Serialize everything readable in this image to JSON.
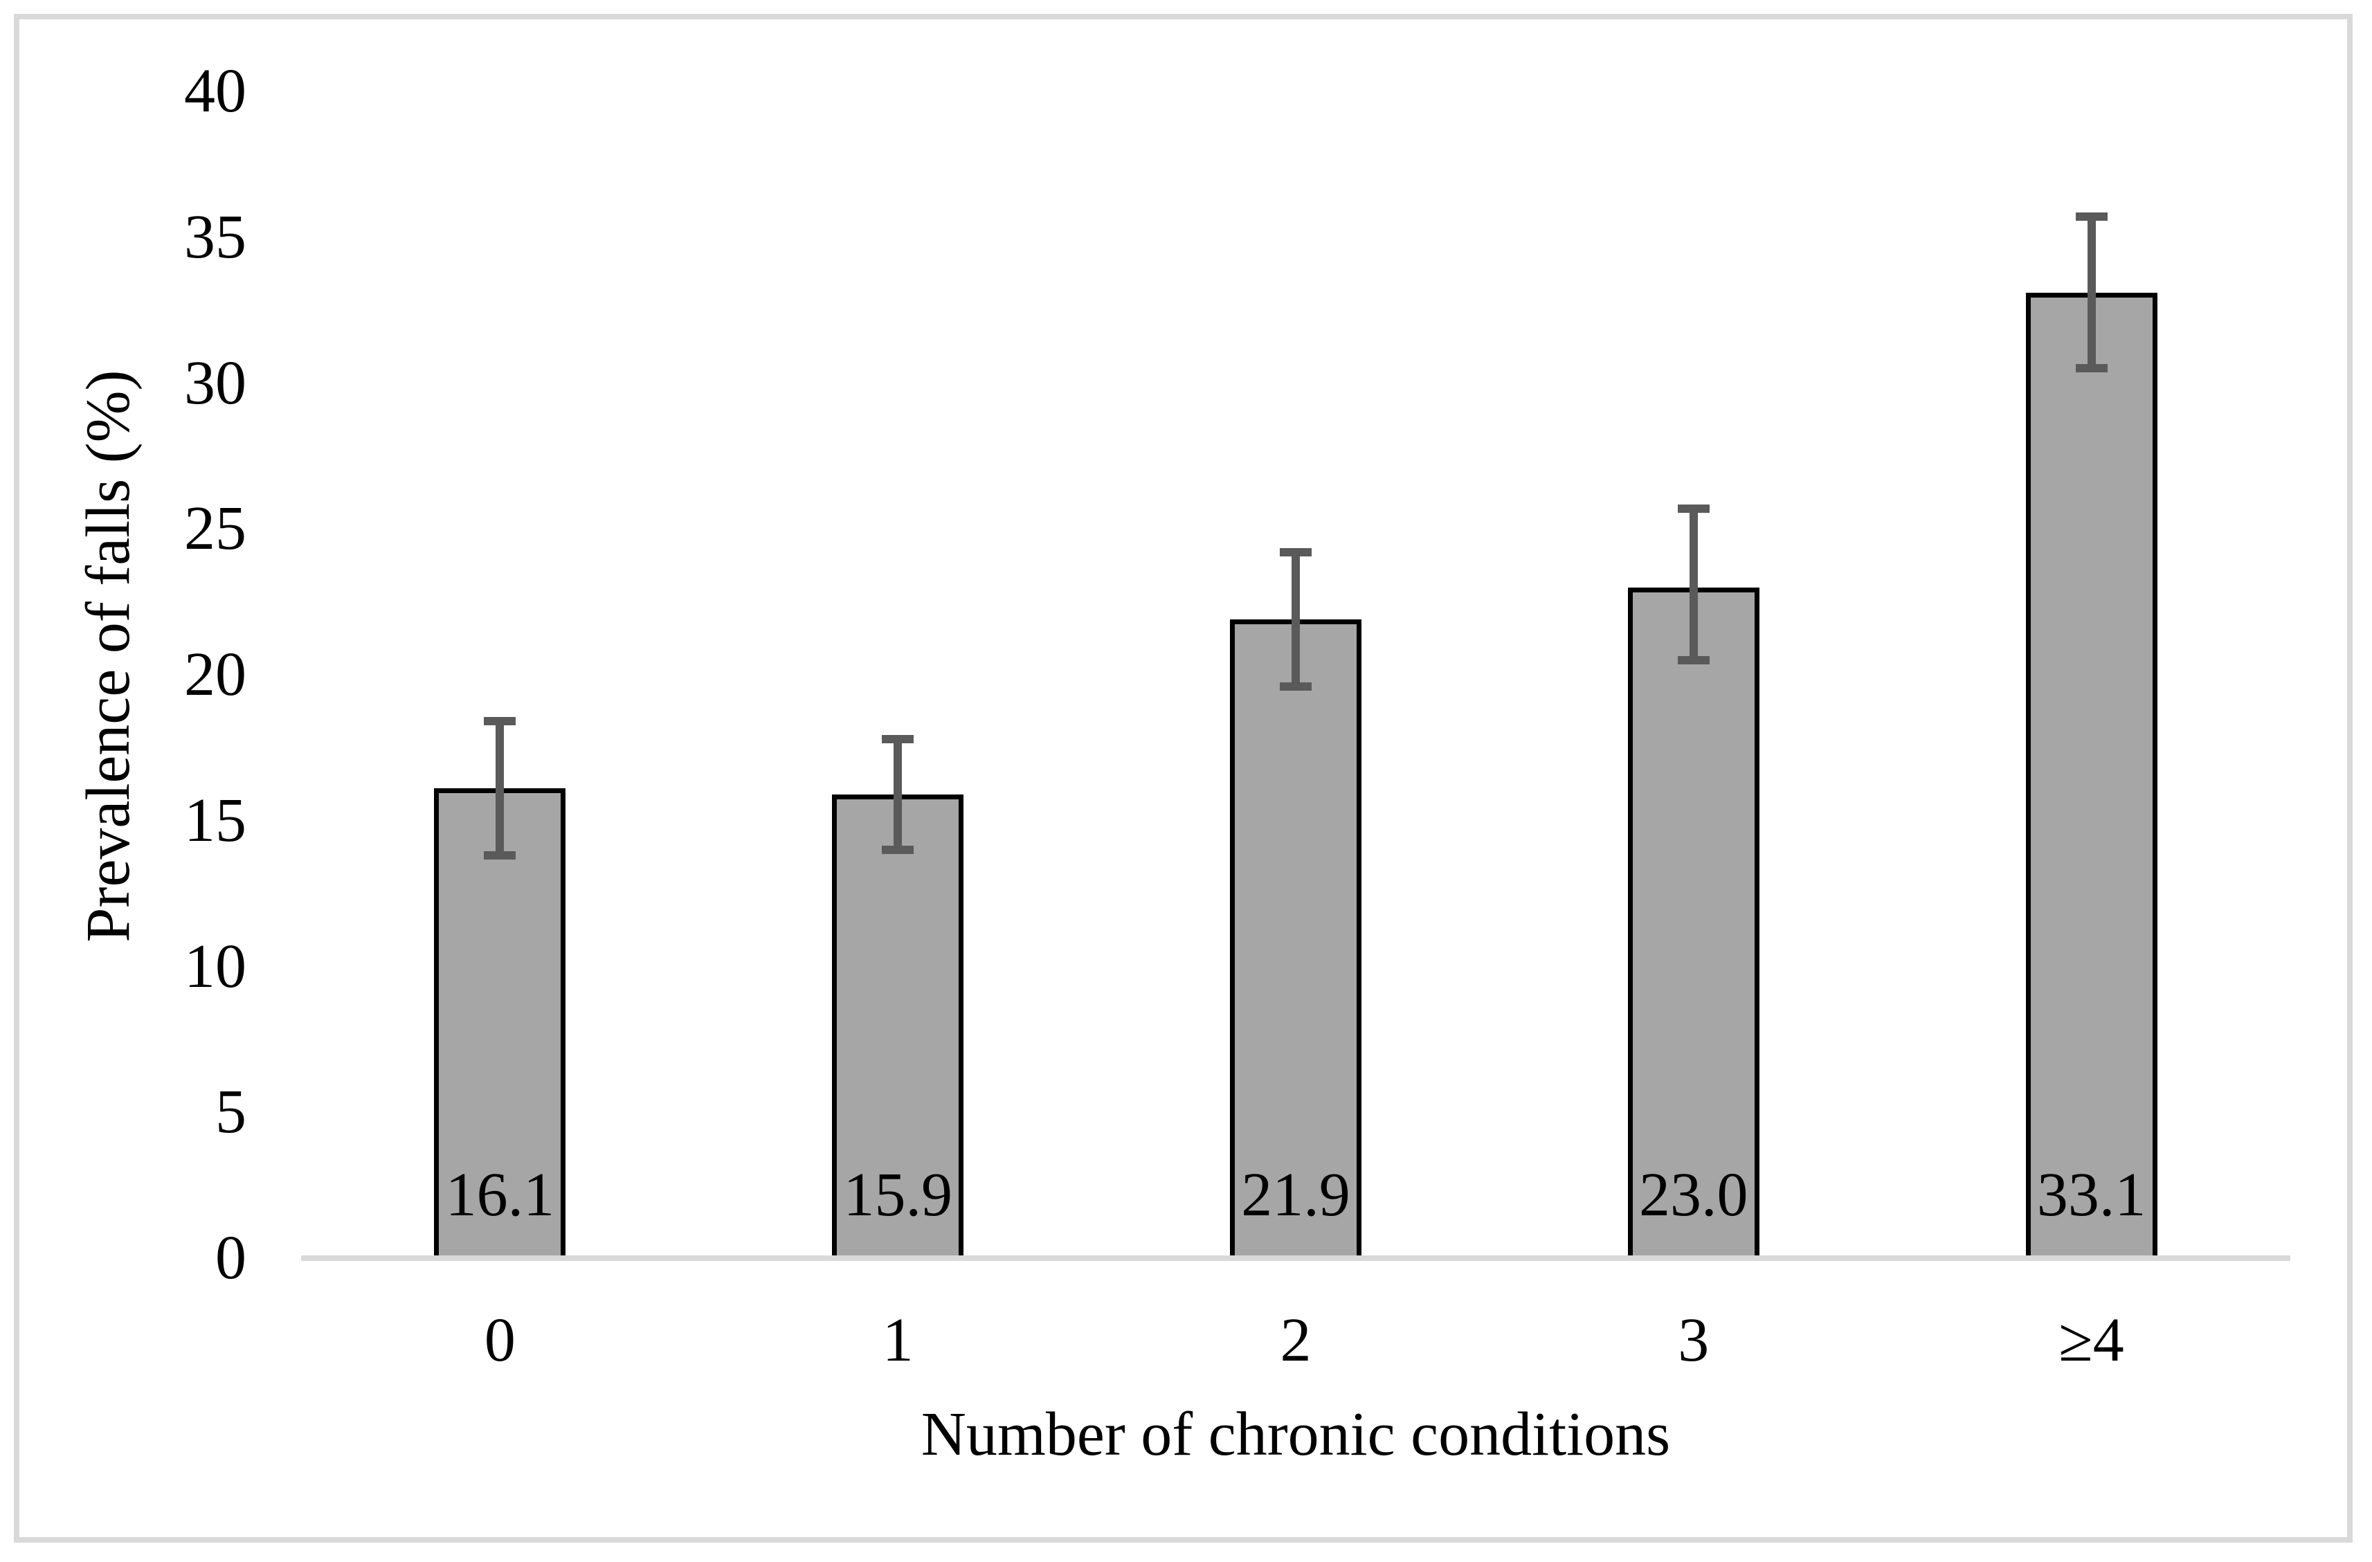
{
  "figure": {
    "frame_color": "#d9d9d9",
    "background_color": "#ffffff"
  },
  "chart_data": {
    "type": "bar",
    "title": "",
    "xlabel": "Number of chronic conditions",
    "ylabel": "Prevalence of falls (%)",
    "categories": [
      "0",
      "1",
      "2",
      "3",
      "≥4"
    ],
    "values": [
      16.1,
      15.9,
      21.9,
      23.0,
      33.1
    ],
    "data_labels": [
      "16.1",
      "15.9",
      "21.9",
      "23.0",
      "33.1"
    ],
    "error_bars": {
      "lower": [
        13.8,
        14.0,
        19.6,
        20.5,
        30.5
      ],
      "upper": [
        18.4,
        17.8,
        24.2,
        25.7,
        35.7
      ]
    },
    "ylim": [
      0,
      40
    ],
    "yticks": [
      0,
      5,
      10,
      15,
      20,
      25,
      30,
      35,
      40
    ],
    "grid": false,
    "legend": null,
    "bar_fill": "#a6a6a6",
    "bar_border": "#000000",
    "error_color": "#5a5a5a",
    "axis_line_color": "#d9d9d9",
    "text_color": "#000000"
  }
}
